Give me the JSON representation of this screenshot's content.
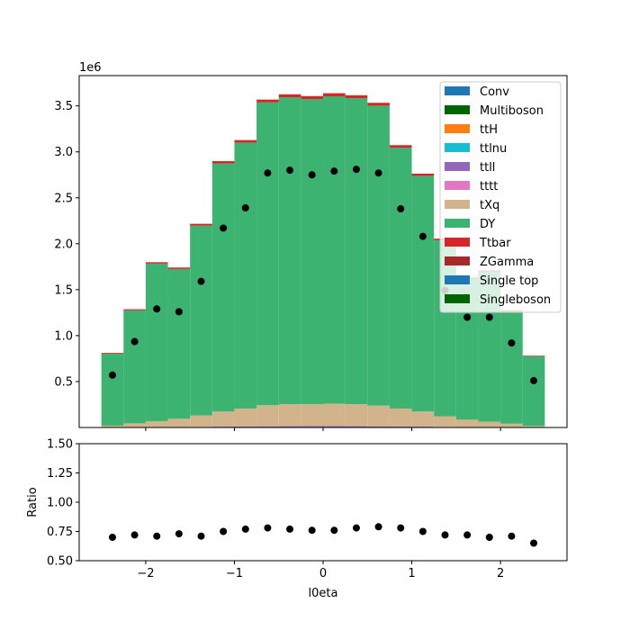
{
  "chart_data": [
    {
      "type": "stacked-histogram",
      "x_edges": [
        -2.5,
        -2.25,
        -2.0,
        -1.75,
        -1.5,
        -1.25,
        -1.0,
        -0.75,
        -0.5,
        -0.25,
        0.0,
        0.25,
        0.5,
        0.75,
        1.0,
        1.25,
        1.5,
        1.75,
        2.0,
        2.25,
        2.5
      ],
      "x_ticks": [
        -2,
        -1,
        0,
        1,
        2
      ],
      "x_tick_labels": [
        "−2",
        "−1",
        "0",
        "1",
        "2"
      ],
      "xlim": [
        -2.75,
        2.75
      ],
      "ylim": [
        0,
        3830000
      ],
      "y_ticks": [
        500000,
        1000000,
        1500000,
        2000000,
        2500000,
        3000000,
        3500000
      ],
      "y_tick_labels": [
        "0.5",
        "1.0",
        "1.5",
        "2.0",
        "2.5",
        "3.0",
        "3.5"
      ],
      "y_offset_label": "1e6",
      "xlabel": "",
      "series": [
        {
          "name": "Conv",
          "color": "#1f77b4",
          "values": [
            0,
            0,
            0,
            0,
            0,
            0,
            0,
            0,
            0,
            0,
            0,
            0,
            0,
            0,
            0,
            0,
            0,
            0,
            0,
            0
          ]
        },
        {
          "name": "Multiboson",
          "color": "#006400",
          "values": [
            0,
            0,
            0,
            0,
            0,
            0,
            0,
            0,
            0,
            0,
            0,
            0,
            0,
            0,
            0,
            0,
            0,
            0,
            0,
            0
          ]
        },
        {
          "name": "ttH",
          "color": "#ff7f0e",
          "values": [
            0,
            0,
            0,
            0,
            0,
            0,
            0,
            0,
            0,
            0,
            0,
            0,
            0,
            0,
            0,
            0,
            0,
            0,
            0,
            0
          ]
        },
        {
          "name": "ttlnu",
          "color": "#17becf",
          "values": [
            0,
            0,
            0,
            0,
            0,
            0,
            0,
            0,
            0,
            0,
            0,
            0,
            0,
            0,
            0,
            0,
            0,
            0,
            0,
            0
          ]
        },
        {
          "name": "ttll",
          "color": "#9467bd",
          "values": [
            2000,
            3000,
            4000,
            5000,
            7000,
            9000,
            11000,
            13000,
            14000,
            15000,
            15000,
            14000,
            13000,
            11000,
            9000,
            7000,
            5000,
            4000,
            3000,
            2000
          ]
        },
        {
          "name": "tttt",
          "color": "#e377c2",
          "values": [
            0,
            0,
            0,
            0,
            0,
            0,
            0,
            0,
            0,
            0,
            0,
            0,
            0,
            0,
            0,
            0,
            0,
            0,
            0,
            0
          ]
        },
        {
          "name": "tXq",
          "color": "#d2b48c",
          "values": [
            18000,
            42000,
            65000,
            90000,
            125000,
            165000,
            195000,
            230000,
            240000,
            240000,
            245000,
            240000,
            225000,
            195000,
            165000,
            115000,
            80000,
            60000,
            38000,
            15000
          ]
        },
        {
          "name": "DY",
          "color": "#3cb371",
          "values": [
            785000,
            1230000,
            1715000,
            1630000,
            2065000,
            2700000,
            2895000,
            3295000,
            3340000,
            3320000,
            3345000,
            3330000,
            3265000,
            2840000,
            2565000,
            1915000,
            1535000,
            1630000,
            1225000,
            758000
          ]
        },
        {
          "name": "Ttbar",
          "color": "#d62728",
          "values": [
            8000,
            12000,
            15000,
            16000,
            20000,
            25000,
            27000,
            31000,
            32000,
            32000,
            33000,
            32000,
            31000,
            27000,
            24000,
            18000,
            14000,
            15000,
            11000,
            7000
          ]
        },
        {
          "name": "ZGamma",
          "color": "#a52a2a",
          "values": [
            0,
            0,
            0,
            0,
            0,
            0,
            0,
            0,
            0,
            0,
            0,
            0,
            0,
            0,
            0,
            0,
            0,
            0,
            0,
            0
          ]
        },
        {
          "name": "Single top",
          "color": "#1f77b4",
          "values": [
            0,
            0,
            0,
            0,
            0,
            0,
            0,
            0,
            0,
            0,
            0,
            0,
            0,
            0,
            0,
            0,
            0,
            0,
            0,
            0
          ]
        },
        {
          "name": "Singleboson",
          "color": "#006400",
          "values": [
            0,
            0,
            0,
            0,
            0,
            0,
            0,
            0,
            0,
            0,
            0,
            0,
            0,
            0,
            0,
            0,
            0,
            0,
            0,
            0
          ]
        }
      ],
      "data_points": {
        "x": [
          -2.375,
          -2.125,
          -1.875,
          -1.625,
          -1.375,
          -1.125,
          -0.875,
          -0.625,
          -0.375,
          -0.125,
          0.125,
          0.375,
          0.625,
          0.875,
          1.125,
          1.375,
          1.625,
          1.875,
          2.125,
          2.375
        ],
        "y": [
          570000,
          935000,
          1290000,
          1260000,
          1590000,
          2170000,
          2390000,
          2770000,
          2800000,
          2750000,
          2790000,
          2810000,
          2770000,
          2380000,
          2080000,
          1490000,
          1200000,
          1200000,
          920000,
          510000
        ],
        "color": "#000000"
      },
      "legend_placement": "top-right"
    },
    {
      "type": "scatter",
      "x": [
        -2.375,
        -2.125,
        -1.875,
        -1.625,
        -1.375,
        -1.125,
        -0.875,
        -0.625,
        -0.375,
        -0.125,
        0.125,
        0.375,
        0.625,
        0.875,
        1.125,
        1.375,
        1.625,
        1.875,
        2.125,
        2.375
      ],
      "y": [
        0.7,
        0.72,
        0.71,
        0.73,
        0.71,
        0.75,
        0.77,
        0.78,
        0.77,
        0.76,
        0.76,
        0.78,
        0.79,
        0.78,
        0.75,
        0.72,
        0.72,
        0.7,
        0.71,
        0.65
      ],
      "xlim": [
        -2.75,
        2.75
      ],
      "ylim": [
        0.5,
        1.5
      ],
      "x_ticks": [
        -2,
        -1,
        0,
        1,
        2
      ],
      "x_tick_labels": [
        "−2",
        "−1",
        "0",
        "1",
        "2"
      ],
      "y_ticks": [
        0.5,
        0.75,
        1.0,
        1.25,
        1.5
      ],
      "y_tick_labels": [
        "0.50",
        "0.75",
        "1.00",
        "1.25",
        "1.50"
      ],
      "xlabel": "l0eta",
      "ylabel": "Ratio",
      "color": "#000000"
    }
  ]
}
